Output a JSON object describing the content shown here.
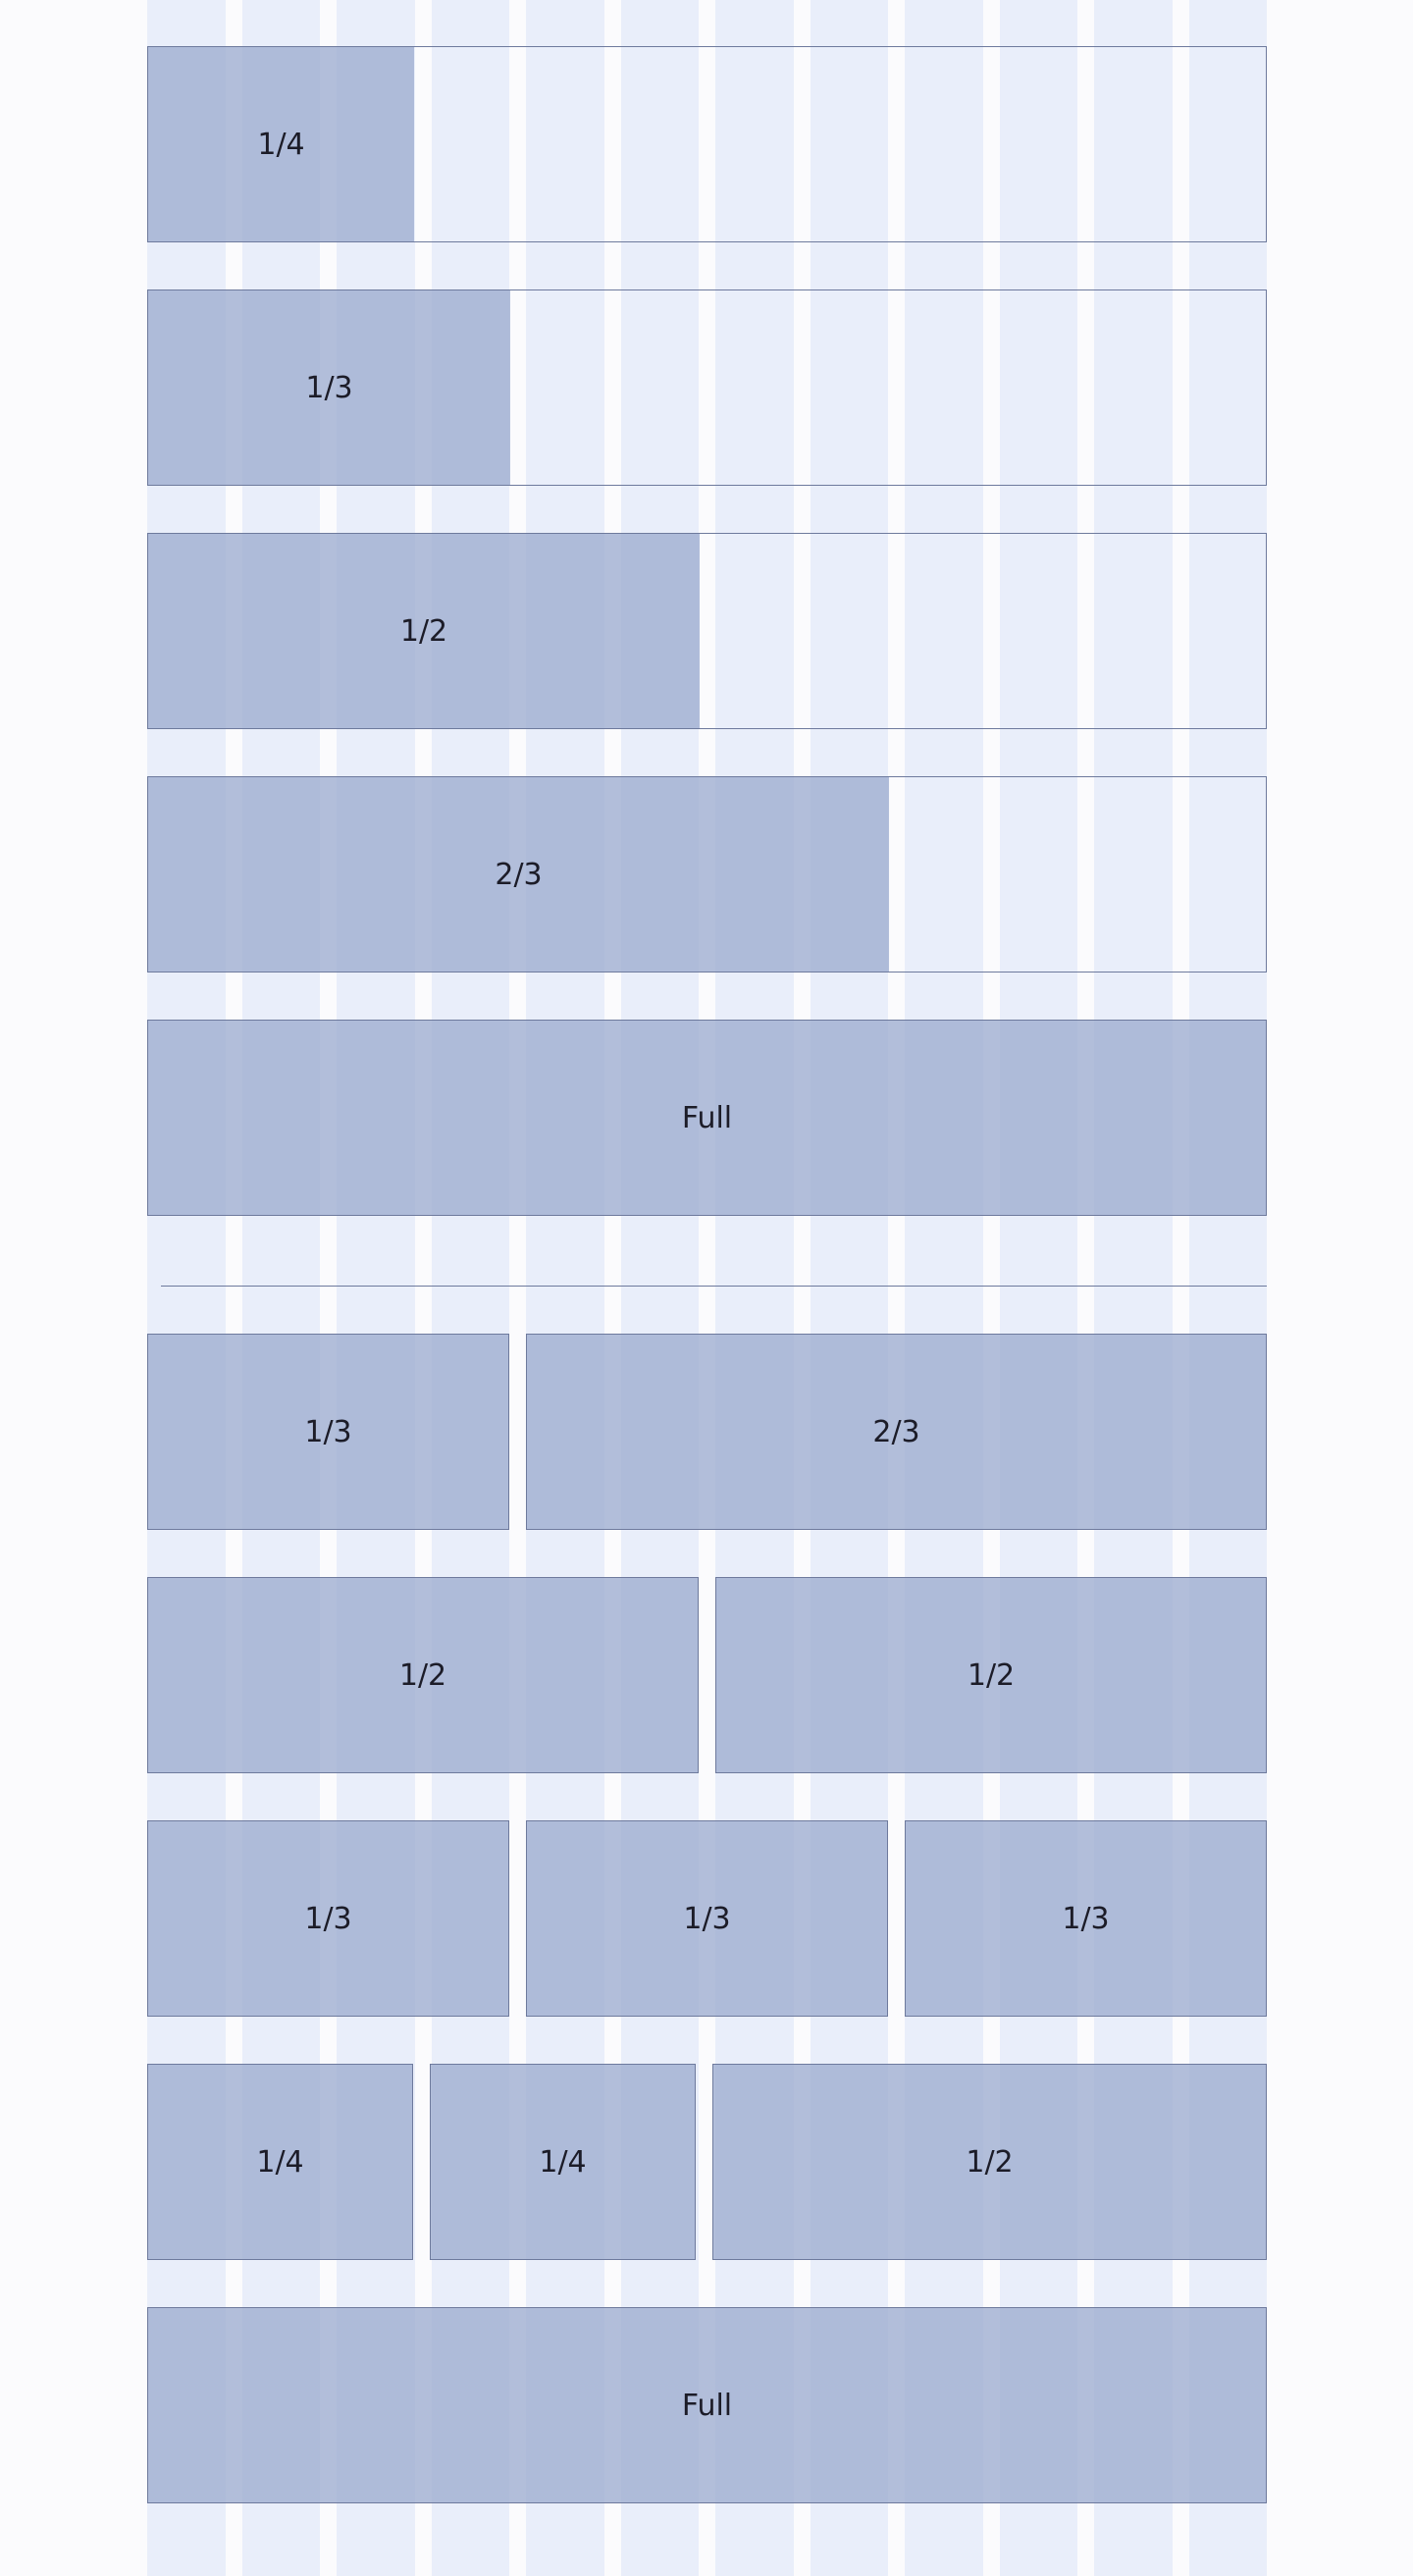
{
  "grid": {
    "columns": 12
  },
  "single_rows": [
    {
      "label": "1/4",
      "span": 3
    },
    {
      "label": "1/3",
      "span": 4
    },
    {
      "label": "1/2",
      "span": 6
    },
    {
      "label": "2/3",
      "span": 8
    },
    {
      "label": "Full",
      "span": 12
    }
  ],
  "combo_rows": [
    {
      "blocks": [
        {
          "label": "1/3"
        },
        {
          "label": "2/3"
        }
      ]
    },
    {
      "blocks": [
        {
          "label": "1/2"
        },
        {
          "label": "1/2"
        }
      ]
    },
    {
      "blocks": [
        {
          "label": "1/3"
        },
        {
          "label": "1/3"
        },
        {
          "label": "1/3"
        }
      ]
    },
    {
      "blocks": [
        {
          "label": "1/4"
        },
        {
          "label": "1/4"
        },
        {
          "label": "1/2"
        }
      ]
    },
    {
      "blocks": [
        {
          "label": "Full"
        }
      ]
    }
  ],
  "colors": {
    "column": "#e9eefa",
    "block": "#adbbd9",
    "border": "#6e7a9d",
    "text": "#1c1c28"
  }
}
